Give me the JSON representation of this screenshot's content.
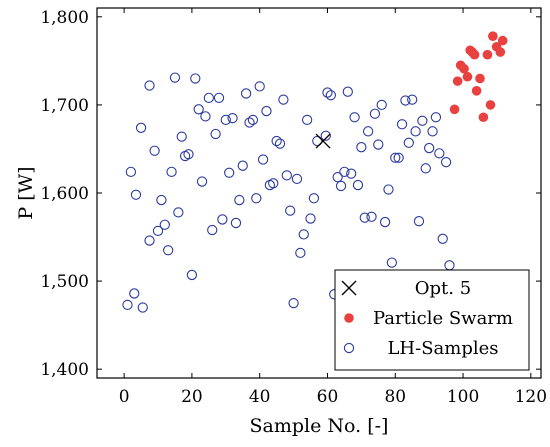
{
  "chart_data": {
    "type": "scatter",
    "xlabel": "Sample No. [-]",
    "ylabel": "P [W]",
    "xlim": [
      -8,
      123
    ],
    "ylim": [
      1390,
      1810
    ],
    "xticks": [
      0,
      20,
      40,
      60,
      80,
      100,
      120
    ],
    "xtick_labels": [
      "0",
      "20",
      "40",
      "60",
      "80",
      "100",
      "120"
    ],
    "yticks": [
      1400,
      1500,
      1600,
      1700,
      1800
    ],
    "ytick_labels": [
      "1,400",
      "1,500",
      "1,600",
      "1,700",
      "1,800"
    ],
    "legend_position": "bottom-right",
    "series": [
      {
        "name": "Opt. 5",
        "marker": "x",
        "color": "#000000",
        "points": [
          [
            58.7,
            1659
          ]
        ]
      },
      {
        "name": "Particle Swarm",
        "marker": "filled-circle",
        "color": "#e8413f",
        "points": [
          [
            97.5,
            1695
          ],
          [
            98.4,
            1727
          ],
          [
            99.3,
            1745
          ],
          [
            100.3,
            1741
          ],
          [
            101.3,
            1732
          ],
          [
            102.1,
            1762
          ],
          [
            102.7,
            1760
          ],
          [
            103.4,
            1757
          ],
          [
            104.0,
            1716
          ],
          [
            105.0,
            1730
          ],
          [
            106.0,
            1686
          ],
          [
            107.2,
            1757
          ],
          [
            108.1,
            1700
          ],
          [
            108.8,
            1778
          ],
          [
            109.9,
            1766
          ],
          [
            111.0,
            1760
          ],
          [
            111.7,
            1773
          ]
        ]
      },
      {
        "name": "LH-Samples",
        "marker": "open-circle",
        "color": "#2b3a9e",
        "points": [
          [
            1.0,
            1473
          ],
          [
            3.0,
            1486
          ],
          [
            5.5,
            1470
          ],
          [
            2.0,
            1624
          ],
          [
            3.5,
            1598
          ],
          [
            5.0,
            1674
          ],
          [
            7.5,
            1546
          ],
          [
            9.0,
            1648
          ],
          [
            7.5,
            1722
          ],
          [
            10.0,
            1557
          ],
          [
            11.0,
            1592
          ],
          [
            12.0,
            1564
          ],
          [
            13.0,
            1535
          ],
          [
            14.0,
            1624
          ],
          [
            15.0,
            1731
          ],
          [
            16.0,
            1578
          ],
          [
            17.0,
            1664
          ],
          [
            18.0,
            1642
          ],
          [
            19.0,
            1644
          ],
          [
            20.0,
            1507
          ],
          [
            21.0,
            1730
          ],
          [
            22.0,
            1695
          ],
          [
            23.0,
            1613
          ],
          [
            24.0,
            1687
          ],
          [
            25.0,
            1708
          ],
          [
            26.0,
            1558
          ],
          [
            27.0,
            1667
          ],
          [
            28.0,
            1708
          ],
          [
            29.0,
            1570
          ],
          [
            30.0,
            1683
          ],
          [
            31.0,
            1623
          ],
          [
            32.0,
            1685
          ],
          [
            33.0,
            1566
          ],
          [
            34.0,
            1592
          ],
          [
            35.0,
            1631
          ],
          [
            36.0,
            1713
          ],
          [
            37.0,
            1680
          ],
          [
            38.0,
            1683
          ],
          [
            39.0,
            1594
          ],
          [
            40.0,
            1721
          ],
          [
            41.0,
            1638
          ],
          [
            42.0,
            1693
          ],
          [
            43.0,
            1609
          ],
          [
            44.0,
            1611
          ],
          [
            45.0,
            1659
          ],
          [
            46.0,
            1656
          ],
          [
            47.0,
            1706
          ],
          [
            48.0,
            1620
          ],
          [
            49.0,
            1580
          ],
          [
            50.0,
            1475
          ],
          [
            51.0,
            1616
          ],
          [
            52.0,
            1532
          ],
          [
            53.0,
            1553
          ],
          [
            54.0,
            1683
          ],
          [
            55.0,
            1571
          ],
          [
            56.0,
            1594
          ],
          [
            57.0,
            1659
          ],
          [
            59.5,
            1665
          ],
          [
            60.0,
            1714
          ],
          [
            61.0,
            1711
          ],
          [
            62.0,
            1485
          ],
          [
            63.0,
            1618
          ],
          [
            64.0,
            1608
          ],
          [
            65.0,
            1624
          ],
          [
            66.0,
            1715
          ],
          [
            67.0,
            1622
          ],
          [
            68.0,
            1686
          ],
          [
            69.0,
            1609
          ],
          [
            70.0,
            1652
          ],
          [
            71.0,
            1572
          ],
          [
            72.0,
            1670
          ],
          [
            73.0,
            1573
          ],
          [
            74.0,
            1690
          ],
          [
            75.0,
            1655
          ],
          [
            76.0,
            1700
          ],
          [
            77.0,
            1567
          ],
          [
            78.0,
            1604
          ],
          [
            79.0,
            1521
          ],
          [
            80.0,
            1640
          ],
          [
            81.0,
            1640
          ],
          [
            82.0,
            1678
          ],
          [
            83.0,
            1705
          ],
          [
            84.0,
            1657
          ],
          [
            85.0,
            1706
          ],
          [
            86.0,
            1670
          ],
          [
            87.0,
            1568
          ],
          [
            88.0,
            1682
          ],
          [
            89.0,
            1628
          ],
          [
            90.0,
            1651
          ],
          [
            91.0,
            1670
          ],
          [
            92.0,
            1686
          ],
          [
            93.0,
            1645
          ],
          [
            94.0,
            1548
          ],
          [
            95.0,
            1635
          ],
          [
            96.0,
            1518
          ]
        ]
      }
    ]
  }
}
